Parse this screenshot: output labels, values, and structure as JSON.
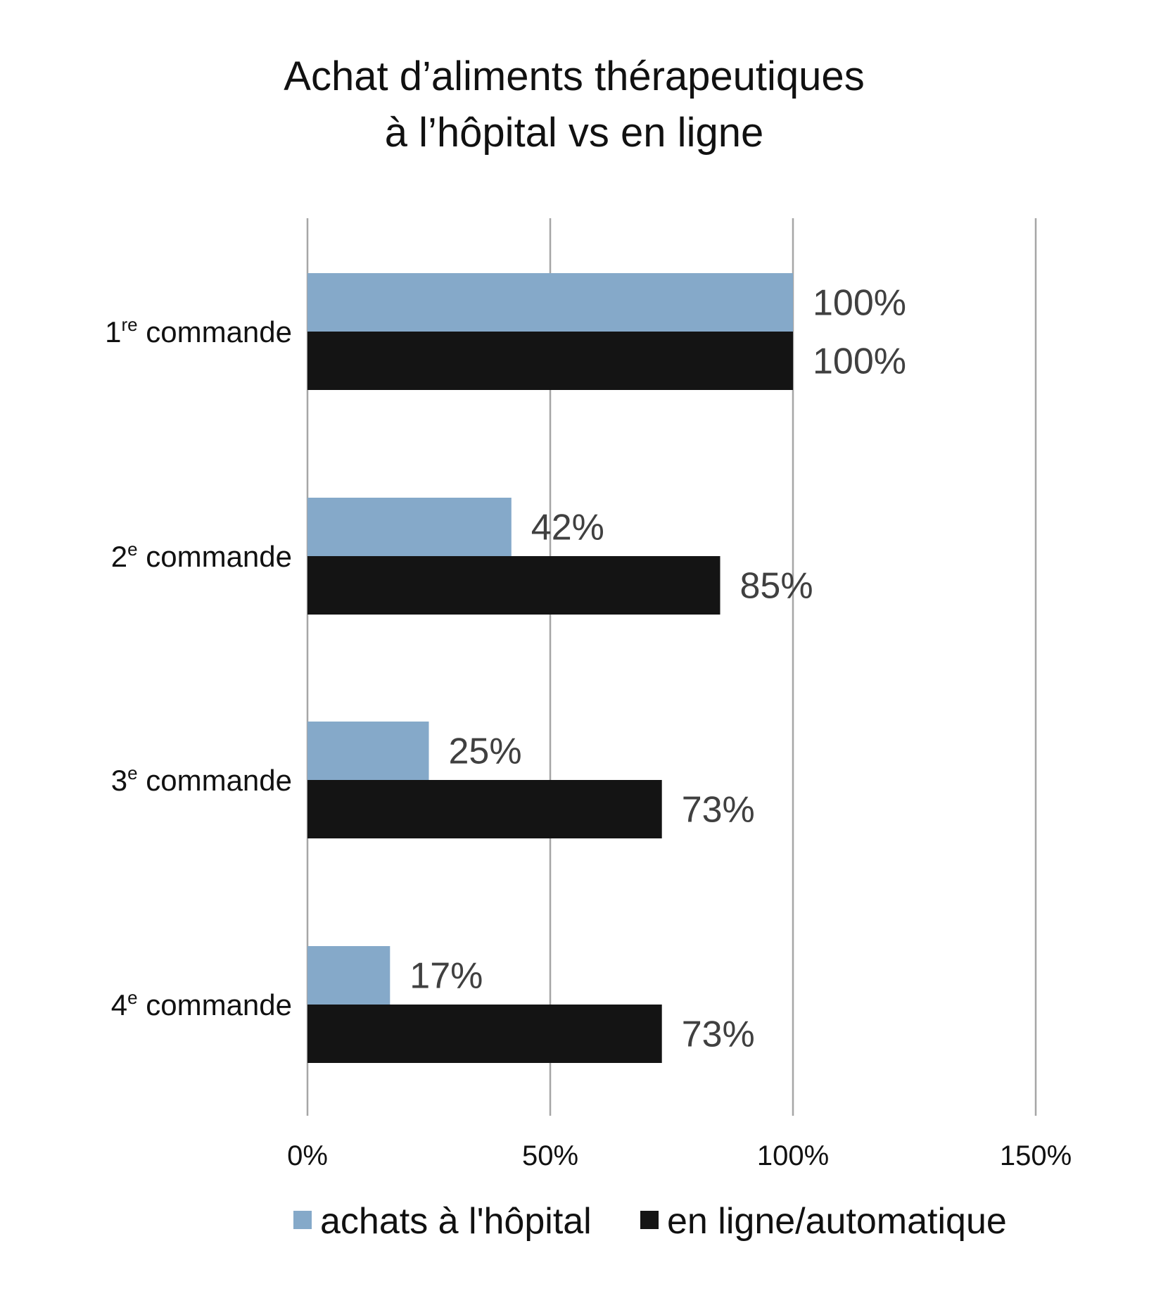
{
  "chart_data": {
    "type": "bar",
    "orientation": "horizontal",
    "title": [
      "Achat d’aliments thérapeutiques",
      "à l’hôpital vs en ligne"
    ],
    "categories": [
      {
        "main": "1",
        "sup": "re",
        "rest": " commande"
      },
      {
        "main": "2",
        "sup": "e",
        "rest": " commande"
      },
      {
        "main": "3",
        "sup": "e",
        "rest": " commande"
      },
      {
        "main": "4",
        "sup": "e",
        "rest": " commande"
      }
    ],
    "series": [
      {
        "name": "achats à l'hôpital",
        "color": "#85a9c9",
        "values": [
          100,
          42,
          25,
          17
        ],
        "labels": [
          "100%",
          "42%",
          "25%",
          "17%"
        ]
      },
      {
        "name": "en ligne/automatique",
        "color": "#141414",
        "values": [
          100,
          85,
          73,
          73
        ],
        "labels": [
          "100%",
          "85%",
          "73%",
          "73%"
        ]
      }
    ],
    "xlim": [
      0,
      150
    ],
    "xticks": [
      0,
      50,
      100,
      150
    ],
    "xtick_labels": [
      "0%",
      "50%",
      "100%",
      "150%"
    ],
    "grid": "vertical",
    "legend": "bottom"
  }
}
